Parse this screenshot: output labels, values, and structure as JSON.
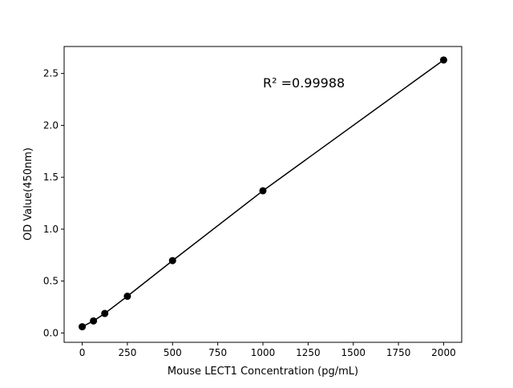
{
  "chart_data": {
    "type": "line",
    "title": "",
    "xlabel": "Mouse LECT1 Concentration (pg/mL)",
    "ylabel": "OD Value(450nm)",
    "xlim": [
      -100,
      2100
    ],
    "ylim": [
      -0.09,
      2.76
    ],
    "xticks": [
      0,
      250,
      500,
      750,
      1000,
      1250,
      1500,
      1750,
      2000
    ],
    "yticks": [
      0.0,
      0.5,
      1.0,
      1.5,
      2.0,
      2.5
    ],
    "ytick_labels": [
      "0.0",
      "0.5",
      "1.0",
      "1.5",
      "2.0",
      "2.5"
    ],
    "grid": false,
    "annotation": "R² =0.99988",
    "series": [
      {
        "x": [
          0,
          62.5,
          125,
          250,
          500,
          1000,
          2000
        ],
        "y": [
          0.06,
          0.116,
          0.188,
          0.354,
          0.697,
          1.37,
          2.63
        ],
        "color": "#000000",
        "marker": "circle"
      }
    ]
  }
}
